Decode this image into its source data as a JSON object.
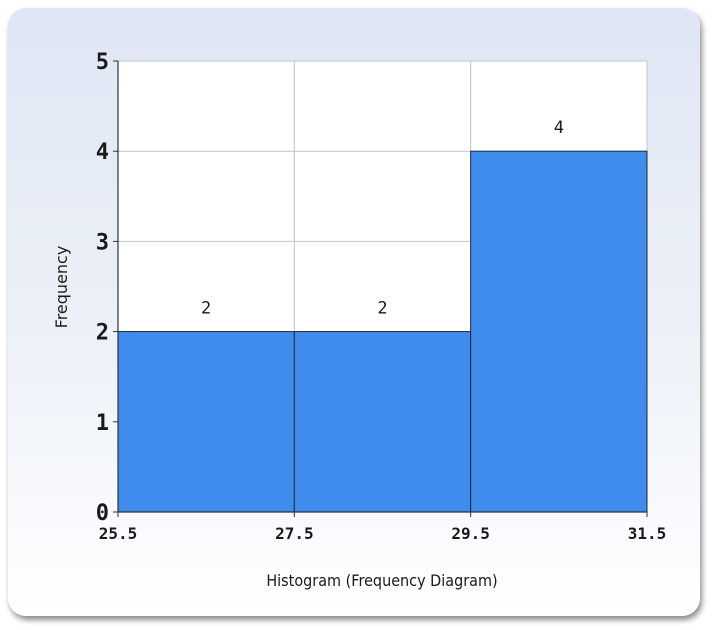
{
  "chart_data": {
    "type": "histogram",
    "bins": [
      {
        "start": 25.5,
        "end": 27.5,
        "frequency": 2
      },
      {
        "start": 27.5,
        "end": 29.5,
        "frequency": 2
      },
      {
        "start": 29.5,
        "end": 31.5,
        "frequency": 4
      }
    ],
    "x_ticks": [
      "25.5",
      "27.5",
      "29.5",
      "31.5"
    ],
    "y_ticks": [
      "0",
      "1",
      "2",
      "3",
      "4",
      "5"
    ],
    "xlim": [
      25.5,
      31.5
    ],
    "ylim": [
      0,
      5
    ],
    "xlabel": "Histogram (Frequency Diagram)",
    "ylabel": "Frequency",
    "grid": true,
    "legend": "none",
    "colors": {
      "bar": "#3f8ced",
      "bar_edge": "#1f2a3a",
      "grid": "#c4c4c4"
    }
  }
}
